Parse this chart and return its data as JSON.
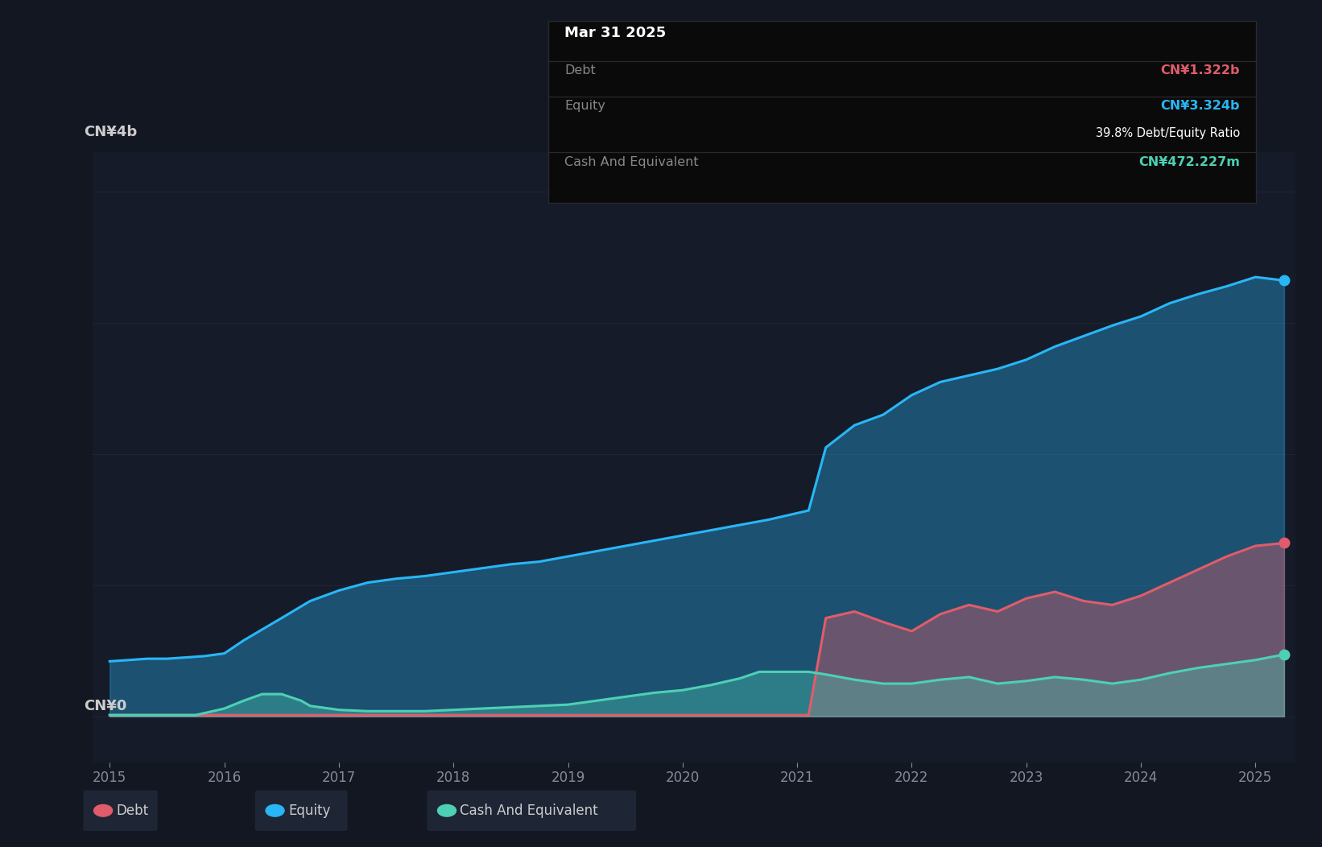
{
  "bg_color": "#131722",
  "chart_bg": "#161b2a",
  "grid_color": "#1e2535",
  "ylabel_text": "CN¥4b",
  "y0_text": "CN¥0",
  "x_ticks": [
    2015,
    2016,
    2017,
    2018,
    2019,
    2020,
    2021,
    2022,
    2023,
    2024,
    2025
  ],
  "y_max": 4.3,
  "y_min": -0.35,
  "debt_color": "#e05c6a",
  "equity_color": "#29b6f6",
  "cash_color": "#4dd0b4",
  "tooltip": {
    "date": "Mar 31 2025",
    "debt_label": "Debt",
    "debt_value": "CN¥1.322b",
    "debt_color": "#e05c6a",
    "equity_label": "Equity",
    "equity_value": "CN¥3.324b",
    "equity_color": "#29b6f6",
    "ratio_text": "39.8% Debt/Equity Ratio",
    "cash_label": "Cash And Equivalent",
    "cash_value": "CN¥472.227m",
    "cash_color": "#4dd0b4"
  },
  "legend": [
    {
      "label": "Debt",
      "color": "#e05c6a"
    },
    {
      "label": "Equity",
      "color": "#29b6f6"
    },
    {
      "label": "Cash And Equivalent",
      "color": "#4dd0b4"
    }
  ],
  "equity_x": [
    2015.0,
    2015.17,
    2015.33,
    2015.5,
    2015.67,
    2015.83,
    2016.0,
    2016.17,
    2016.5,
    2016.75,
    2017.0,
    2017.25,
    2017.5,
    2017.75,
    2018.0,
    2018.25,
    2018.5,
    2018.75,
    2019.0,
    2019.25,
    2019.5,
    2019.75,
    2020.0,
    2020.25,
    2020.5,
    2020.75,
    2021.0,
    2021.1,
    2021.25,
    2021.5,
    2021.75,
    2022.0,
    2022.25,
    2022.5,
    2022.75,
    2023.0,
    2023.25,
    2023.5,
    2023.75,
    2024.0,
    2024.25,
    2024.5,
    2024.75,
    2025.0,
    2025.25
  ],
  "equity_y": [
    0.42,
    0.43,
    0.44,
    0.44,
    0.45,
    0.46,
    0.48,
    0.58,
    0.75,
    0.88,
    0.96,
    1.02,
    1.05,
    1.07,
    1.1,
    1.13,
    1.16,
    1.18,
    1.22,
    1.26,
    1.3,
    1.34,
    1.38,
    1.42,
    1.46,
    1.5,
    1.55,
    1.57,
    2.05,
    2.22,
    2.3,
    2.45,
    2.55,
    2.6,
    2.65,
    2.72,
    2.82,
    2.9,
    2.98,
    3.05,
    3.15,
    3.22,
    3.28,
    3.35,
    3.324
  ],
  "debt_x": [
    2015.0,
    2015.25,
    2015.5,
    2015.75,
    2016.0,
    2016.25,
    2016.5,
    2016.75,
    2017.0,
    2017.25,
    2017.5,
    2017.75,
    2018.0,
    2018.25,
    2018.5,
    2018.75,
    2019.0,
    2019.25,
    2019.5,
    2019.75,
    2020.0,
    2020.25,
    2020.5,
    2020.75,
    2021.0,
    2021.1,
    2021.25,
    2021.5,
    2021.75,
    2022.0,
    2022.25,
    2022.5,
    2022.75,
    2023.0,
    2023.25,
    2023.5,
    2023.75,
    2024.0,
    2024.25,
    2024.5,
    2024.75,
    2025.0,
    2025.25
  ],
  "debt_y": [
    0.01,
    0.01,
    0.01,
    0.01,
    0.01,
    0.01,
    0.01,
    0.01,
    0.01,
    0.01,
    0.01,
    0.01,
    0.01,
    0.01,
    0.01,
    0.01,
    0.01,
    0.01,
    0.01,
    0.01,
    0.01,
    0.01,
    0.01,
    0.01,
    0.01,
    0.01,
    0.75,
    0.8,
    0.72,
    0.65,
    0.78,
    0.85,
    0.8,
    0.9,
    0.95,
    0.88,
    0.85,
    0.92,
    1.02,
    1.12,
    1.22,
    1.3,
    1.322
  ],
  "cash_x": [
    2015.0,
    2015.25,
    2015.5,
    2015.75,
    2016.0,
    2016.17,
    2016.33,
    2016.5,
    2016.67,
    2016.75,
    2017.0,
    2017.25,
    2017.5,
    2017.75,
    2018.0,
    2018.25,
    2018.5,
    2018.75,
    2019.0,
    2019.25,
    2019.5,
    2019.75,
    2020.0,
    2020.25,
    2020.5,
    2020.67,
    2020.75,
    2021.0,
    2021.1,
    2021.25,
    2021.5,
    2021.75,
    2022.0,
    2022.25,
    2022.5,
    2022.75,
    2023.0,
    2023.25,
    2023.5,
    2023.75,
    2024.0,
    2024.25,
    2024.5,
    2024.75,
    2025.0,
    2025.25
  ],
  "cash_y": [
    0.01,
    0.01,
    0.01,
    0.01,
    0.06,
    0.12,
    0.17,
    0.17,
    0.12,
    0.08,
    0.05,
    0.04,
    0.04,
    0.04,
    0.05,
    0.06,
    0.07,
    0.08,
    0.09,
    0.12,
    0.15,
    0.18,
    0.2,
    0.24,
    0.29,
    0.34,
    0.34,
    0.34,
    0.34,
    0.32,
    0.28,
    0.25,
    0.25,
    0.28,
    0.3,
    0.25,
    0.27,
    0.3,
    0.28,
    0.25,
    0.28,
    0.33,
    0.37,
    0.4,
    0.43,
    0.472
  ]
}
